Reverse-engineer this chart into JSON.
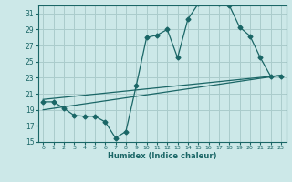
{
  "xlabel": "Humidex (Indice chaleur)",
  "bg_color": "#cce8e8",
  "grid_color": "#aacccc",
  "line_color": "#1a6666",
  "xlim": [
    -0.5,
    23.5
  ],
  "ylim": [
    15,
    32
  ],
  "yticks": [
    15,
    17,
    19,
    21,
    23,
    25,
    27,
    29,
    31
  ],
  "xticks": [
    0,
    1,
    2,
    3,
    4,
    5,
    6,
    7,
    8,
    9,
    10,
    11,
    12,
    13,
    14,
    15,
    16,
    17,
    18,
    19,
    20,
    21,
    22,
    23
  ],
  "line1_x": [
    0,
    1,
    2,
    3,
    4,
    5,
    6,
    7,
    8,
    9,
    10,
    11,
    12,
    13,
    14,
    15,
    16,
    17,
    18,
    19,
    20,
    21,
    22,
    23
  ],
  "line1_y": [
    20.0,
    20.0,
    19.2,
    18.3,
    18.2,
    18.2,
    17.5,
    15.5,
    16.3,
    22.0,
    28.0,
    28.3,
    29.0,
    25.5,
    30.3,
    32.2,
    32.3,
    32.2,
    32.0,
    29.3,
    28.2,
    25.5,
    23.2,
    23.2
  ],
  "line2_x": [
    0,
    23
  ],
  "line2_y": [
    20.3,
    23.3
  ],
  "line3_x": [
    0,
    23
  ],
  "line3_y": [
    19.0,
    23.3
  ],
  "marker_size": 2.5,
  "linewidth": 0.9
}
